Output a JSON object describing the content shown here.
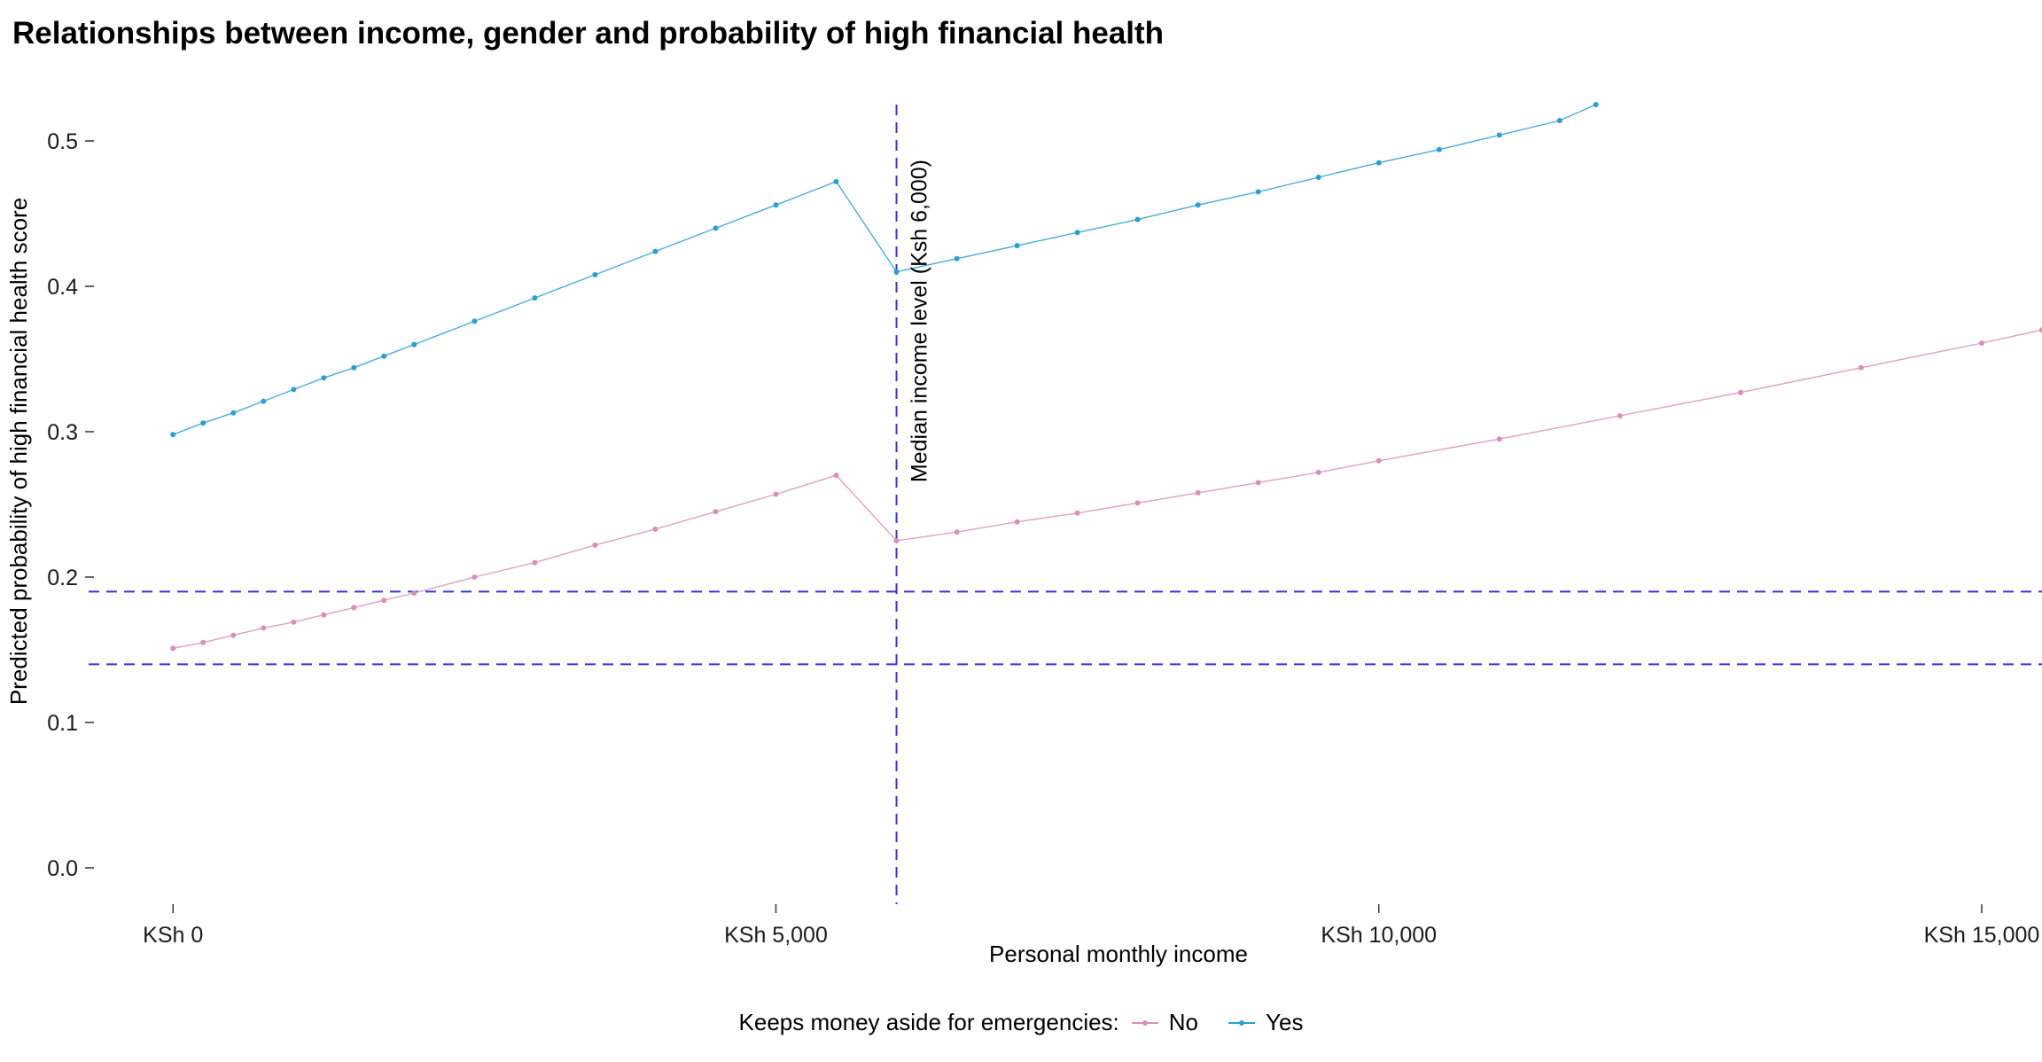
{
  "chart_data": {
    "type": "line",
    "title": "Relationships between income, gender and probability of high financial health",
    "xlabel": "Personal monthly income",
    "ylabel": "Predicted probability of high financial health score",
    "xlim": [
      -700,
      15500
    ],
    "ylim": [
      -0.025,
      0.525
    ],
    "x_ticks": [
      {
        "value": 0,
        "label": "KSh 0"
      },
      {
        "value": 5000,
        "label": "KSh 5,000"
      },
      {
        "value": 10000,
        "label": "KSh 10,000"
      },
      {
        "value": 15000,
        "label": "KSh 15,000"
      }
    ],
    "y_ticks": [
      {
        "value": 0.0,
        "label": "0.0"
      },
      {
        "value": 0.1,
        "label": "0.1"
      },
      {
        "value": 0.2,
        "label": "0.2"
      },
      {
        "value": 0.3,
        "label": "0.3"
      },
      {
        "value": 0.4,
        "label": "0.4"
      },
      {
        "value": 0.5,
        "label": "0.5"
      }
    ],
    "grid": false,
    "legend_position": "bottom",
    "legend_title": "Keeps money aside for emergencies:",
    "series": [
      {
        "name": "No",
        "color": "#d98fb8",
        "x": [
          0,
          250,
          500,
          750,
          1000,
          1250,
          1500,
          1750,
          2000,
          2500,
          3000,
          3500,
          4000,
          4500,
          5000,
          5500,
          6000,
          6500,
          7000,
          7500,
          8000,
          8500,
          9000,
          9500,
          10000,
          11000,
          12000,
          13000,
          14000,
          15000,
          15500
        ],
        "y": [
          0.151,
          0.155,
          0.16,
          0.165,
          0.169,
          0.174,
          0.179,
          0.184,
          0.189,
          0.2,
          0.21,
          0.222,
          0.233,
          0.245,
          0.257,
          0.27,
          0.225,
          0.231,
          0.238,
          0.244,
          0.251,
          0.258,
          0.265,
          0.272,
          0.28,
          0.295,
          0.311,
          0.327,
          0.344,
          0.361,
          0.37
        ]
      },
      {
        "name": "Yes",
        "color": "#2a9fd0",
        "x": [
          0,
          250,
          500,
          750,
          1000,
          1250,
          1500,
          1750,
          2000,
          2500,
          3000,
          3500,
          4000,
          4500,
          5000,
          5500,
          6000,
          6500,
          7000,
          7500,
          8000,
          8500,
          9000,
          9500,
          10000,
          10500,
          11000,
          11500,
          11800
        ],
        "y": [
          0.298,
          0.306,
          0.313,
          0.321,
          0.329,
          0.337,
          0.344,
          0.352,
          0.36,
          0.376,
          0.392,
          0.408,
          0.424,
          0.44,
          0.456,
          0.472,
          0.41,
          0.419,
          0.428,
          0.437,
          0.446,
          0.456,
          0.465,
          0.475,
          0.485,
          0.494,
          0.504,
          0.514,
          0.525
        ]
      }
    ],
    "reference_lines": [
      {
        "axis": "x",
        "value": 6000,
        "color": "#3a2fe0",
        "label": "Median income level (Ksh 6,000)"
      },
      {
        "axis": "y",
        "value": 0.19,
        "color": "#3a2fe0"
      },
      {
        "axis": "y",
        "value": 0.14,
        "color": "#3a2fe0"
      }
    ]
  }
}
